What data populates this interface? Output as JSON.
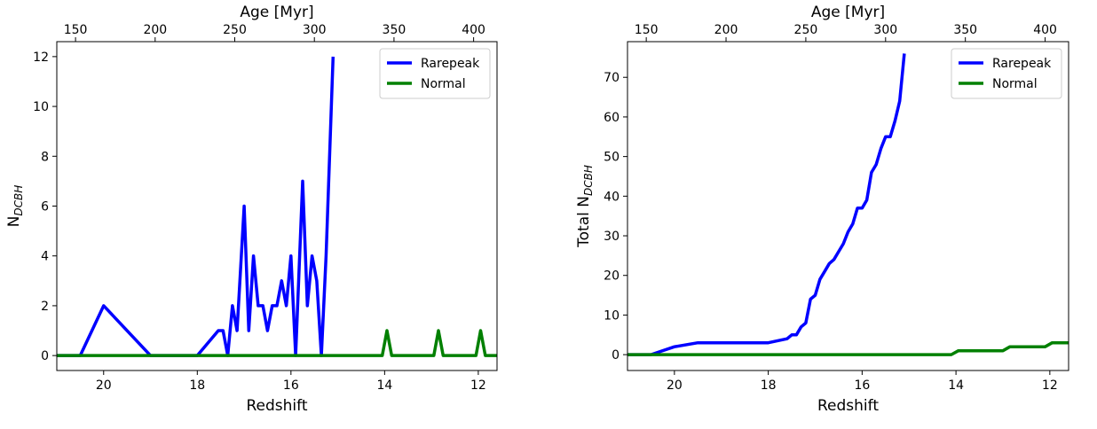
{
  "chart_data": [
    {
      "type": "line",
      "xlabel": "Redshift",
      "ylabel_main": "N",
      "ylabel_sub": "DCBH",
      "top_xlabel": "Age [Myr]",
      "xlim": [
        21,
        11.6
      ],
      "ylim": [
        -0.6,
        12.6
      ],
      "x_ticks": [
        20,
        18,
        16,
        14,
        12
      ],
      "y_ticks": [
        0,
        2,
        4,
        6,
        8,
        10,
        12
      ],
      "top_ticks": [
        {
          "label": "150",
          "z": 20.6
        },
        {
          "label": "200",
          "z": 18.9
        },
        {
          "label": "250",
          "z": 17.2
        },
        {
          "label": "300",
          "z": 15.5
        },
        {
          "label": "350",
          "z": 13.8
        },
        {
          "label": "400",
          "z": 12.1
        }
      ],
      "legend_position": "top-right",
      "series": [
        {
          "name": "Rarepeak",
          "color": "#0000ff",
          "x": [
            21.0,
            20.5,
            20.0,
            19.0,
            18.0,
            17.55,
            17.45,
            17.35,
            17.25,
            17.15,
            17.0,
            16.9,
            16.8,
            16.7,
            16.6,
            16.5,
            16.4,
            16.3,
            16.2,
            16.1,
            16.0,
            15.9,
            15.75,
            15.65,
            15.55,
            15.45,
            15.35,
            15.25,
            15.1
          ],
          "y": [
            0,
            0,
            2,
            0,
            0,
            1,
            1,
            0,
            2,
            1,
            6,
            1,
            4,
            2,
            2,
            1,
            2,
            2,
            3,
            2,
            4,
            0,
            7,
            2,
            4,
            3,
            0,
            4,
            12
          ]
        },
        {
          "name": "Normal",
          "color": "#008000",
          "x": [
            21.0,
            14.05,
            13.95,
            13.85,
            12.95,
            12.85,
            12.75,
            12.05,
            11.95,
            11.85,
            11.6
          ],
          "y": [
            0,
            0,
            1,
            0,
            0,
            1,
            0,
            0,
            1,
            0,
            0
          ]
        }
      ]
    },
    {
      "type": "line",
      "xlabel": "Redshift",
      "ylabel_main": "Total N",
      "ylabel_sub": "DCBH",
      "top_xlabel": "Age [Myr]",
      "xlim": [
        21,
        11.6
      ],
      "ylim": [
        -4,
        79
      ],
      "x_ticks": [
        20,
        18,
        16,
        14,
        12
      ],
      "y_ticks": [
        0,
        10,
        20,
        30,
        40,
        50,
        60,
        70
      ],
      "top_ticks": [
        {
          "label": "150",
          "z": 20.6
        },
        {
          "label": "200",
          "z": 18.9
        },
        {
          "label": "250",
          "z": 17.2
        },
        {
          "label": "300",
          "z": 15.5
        },
        {
          "label": "350",
          "z": 13.8
        },
        {
          "label": "400",
          "z": 12.1
        }
      ],
      "legend_position": "top-right",
      "series": [
        {
          "name": "Rarepeak",
          "color": "#0000ff",
          "x": [
            21.0,
            20.5,
            20.0,
            19.5,
            19.0,
            18.0,
            17.6,
            17.5,
            17.4,
            17.3,
            17.2,
            17.1,
            17.0,
            16.9,
            16.8,
            16.7,
            16.6,
            16.5,
            16.4,
            16.3,
            16.2,
            16.1,
            16.0,
            15.9,
            15.8,
            15.7,
            15.6,
            15.5,
            15.4,
            15.3,
            15.2,
            15.1
          ],
          "y": [
            0,
            0,
            2,
            3,
            3,
            3,
            4,
            5,
            5,
            7,
            8,
            14,
            15,
            19,
            21,
            23,
            24,
            26,
            28,
            31,
            33,
            37,
            37,
            39,
            46,
            48,
            52,
            55,
            55,
            59,
            64,
            76
          ]
        },
        {
          "name": "Normal",
          "color": "#008000",
          "x": [
            21.0,
            14.1,
            13.95,
            13.0,
            12.85,
            12.1,
            11.95,
            11.6
          ],
          "y": [
            0,
            0,
            1,
            1,
            2,
            2,
            3,
            3
          ]
        }
      ]
    }
  ]
}
